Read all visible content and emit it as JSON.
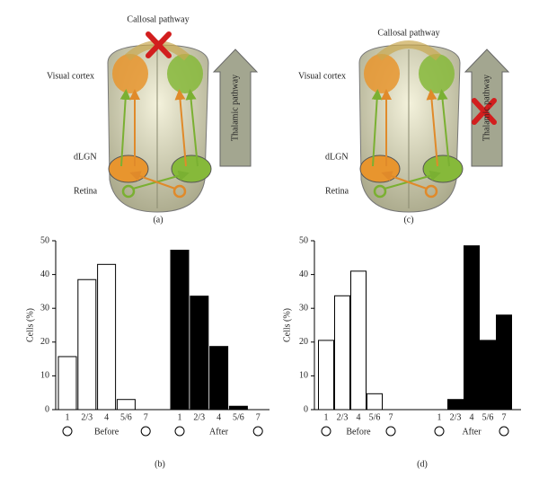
{
  "diagrams": [
    {
      "callosal": "Callosal pathway",
      "cortex": "Visual cortex",
      "thalamic": "Thalamic pathway",
      "dlgn": "dLGN",
      "retina": "Retina",
      "panel": "(a)"
    },
    {
      "callosal": "Callosal pathway",
      "cortex": "Visual cortex",
      "thalamic": "Thalamic pathway",
      "dlgn": "dLGN",
      "retina": "Retina",
      "panel": "(c)"
    }
  ],
  "chart_data": [
    {
      "type": "bar",
      "panel": "(b)",
      "y_label": "Cells (%)",
      "categories": [
        "1",
        "2/3",
        "4",
        "5/6",
        "7"
      ],
      "series": [
        {
          "name": "Before",
          "color": "#ffffff",
          "values": [
            15.7,
            38.5,
            43,
            3,
            0
          ]
        },
        {
          "name": "After",
          "color": "#000000",
          "values": [
            47.2,
            33.6,
            18.7,
            1,
            0
          ]
        }
      ],
      "ylim": [
        0,
        50
      ],
      "yticks": [
        0,
        10,
        20,
        30,
        40,
        50
      ]
    },
    {
      "type": "bar",
      "panel": "(d)",
      "y_label": "Cells (%)",
      "categories": [
        "1",
        "2/3",
        "4",
        "5/6",
        "7"
      ],
      "series": [
        {
          "name": "Before",
          "color": "#ffffff",
          "values": [
            20.5,
            33.7,
            41,
            4.7,
            0
          ]
        },
        {
          "name": "After",
          "color": "#000000",
          "values": [
            0,
            3,
            48.5,
            20.5,
            28
          ]
        }
      ],
      "ylim": [
        0,
        50
      ],
      "yticks": [
        0,
        10,
        20,
        30,
        40,
        50
      ]
    }
  ]
}
